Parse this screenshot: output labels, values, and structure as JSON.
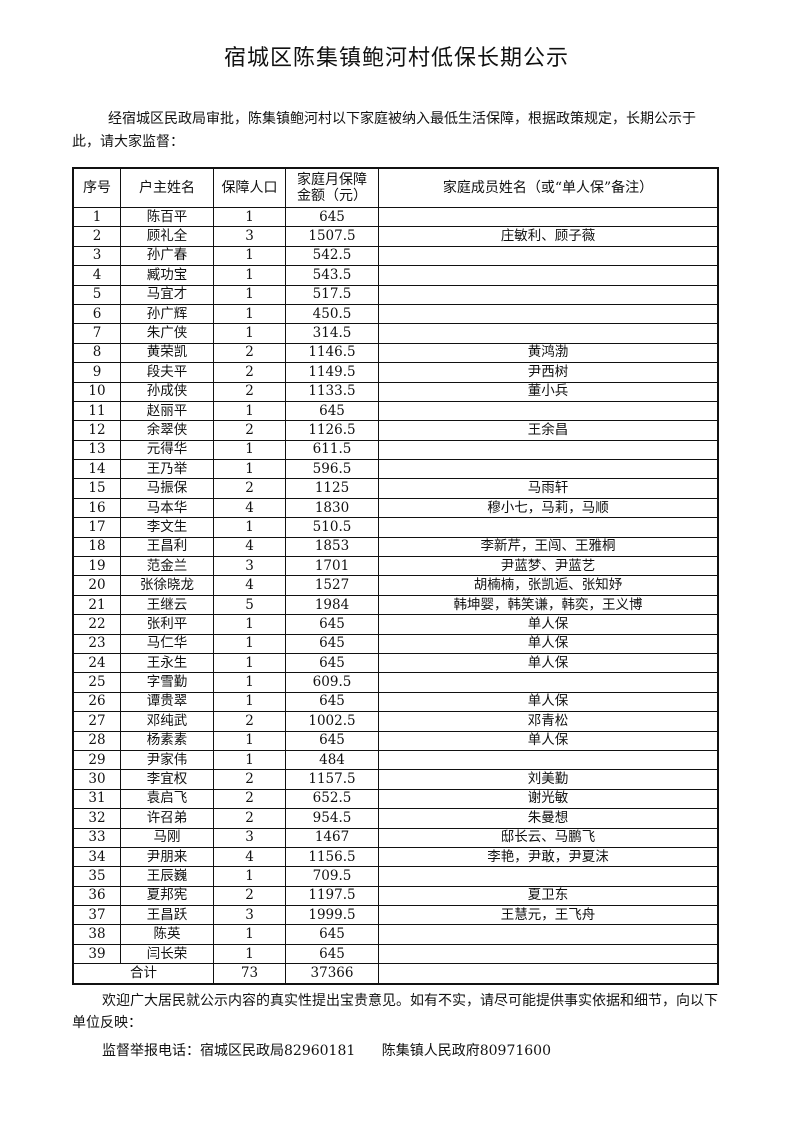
{
  "title": "宿城区陈集镇鲍河村低保长期公示",
  "intro": "经宿城区民政局审批，陈集镇鲍河村以下家庭被纳入最低生活保障，根据政策规定，长期公示于此，请大家监督：",
  "table": {
    "headers": [
      "序号",
      "户主姓名",
      "保障人口",
      "家庭月保障金额（元）",
      "家庭成员姓名（或“单人保”备注）"
    ],
    "rows": [
      [
        "1",
        "陈百平",
        "1",
        "645",
        ""
      ],
      [
        "2",
        "顾礼全",
        "3",
        "1507.5",
        "庄敏利、顾子薇"
      ],
      [
        "3",
        "孙广春",
        "1",
        "542.5",
        ""
      ],
      [
        "4",
        "臧功宝",
        "1",
        "543.5",
        ""
      ],
      [
        "5",
        "马宜才",
        "1",
        "517.5",
        ""
      ],
      [
        "6",
        "孙广辉",
        "1",
        "450.5",
        ""
      ],
      [
        "7",
        "朱广侠",
        "1",
        "314.5",
        ""
      ],
      [
        "8",
        "黄荣凯",
        "2",
        "1146.5",
        "黄鸿渤"
      ],
      [
        "9",
        "段夫平",
        "2",
        "1149.5",
        "尹西树"
      ],
      [
        "10",
        "孙成侠",
        "2",
        "1133.5",
        "董小兵"
      ],
      [
        "11",
        "赵丽平",
        "1",
        "645",
        ""
      ],
      [
        "12",
        "余翠侠",
        "2",
        "1126.5",
        "王余昌"
      ],
      [
        "13",
        "元得华",
        "1",
        "611.5",
        ""
      ],
      [
        "14",
        "王乃举",
        "1",
        "596.5",
        ""
      ],
      [
        "15",
        "马振保",
        "2",
        "1125",
        "马雨轩"
      ],
      [
        "16",
        "马本华",
        "4",
        "1830",
        "穆小七，马莉，马顺"
      ],
      [
        "17",
        "李文生",
        "1",
        "510.5",
        ""
      ],
      [
        "18",
        "王昌利",
        "4",
        "1853",
        "李新芹，王闯、王雅桐"
      ],
      [
        "19",
        "范金兰",
        "3",
        "1701",
        "尹蓝梦、尹蓝艺"
      ],
      [
        "20",
        "张徐晓龙",
        "4",
        "1527",
        "胡楠楠，张凯逅、张知妤"
      ],
      [
        "21",
        "王继云",
        "5",
        "1984",
        "韩坤婴，韩笑谦，韩奕，王义博"
      ],
      [
        "22",
        "张利平",
        "1",
        "645",
        "单人保"
      ],
      [
        "23",
        "马仁华",
        "1",
        "645",
        "单人保"
      ],
      [
        "24",
        "王永生",
        "1",
        "645",
        "单人保"
      ],
      [
        "25",
        "字雪勤",
        "1",
        "609.5",
        ""
      ],
      [
        "26",
        "谭贵翠",
        "1",
        "645",
        "单人保"
      ],
      [
        "27",
        "邓纯武",
        "2",
        "1002.5",
        "邓青松"
      ],
      [
        "28",
        "杨素素",
        "1",
        "645",
        "单人保"
      ],
      [
        "29",
        "尹家伟",
        "1",
        "484",
        ""
      ],
      [
        "30",
        "李宜权",
        "2",
        "1157.5",
        "刘美勤"
      ],
      [
        "31",
        "袁启飞",
        "2",
        "652.5",
        "谢光敏"
      ],
      [
        "32",
        "许召弟",
        "2",
        "954.5",
        "朱曼想"
      ],
      [
        "33",
        "马刚",
        "3",
        "1467",
        "邸长云、马鹏飞"
      ],
      [
        "34",
        "尹朋来",
        "4",
        "1156.5",
        "李艳，尹敢，尹夏沫"
      ],
      [
        "35",
        "王辰巍",
        "1",
        "709.5",
        ""
      ],
      [
        "36",
        "夏邦宪",
        "2",
        "1197.5",
        "夏卫东"
      ],
      [
        "37",
        "王昌跃",
        "3",
        "1999.5",
        "王慧元，王飞舟"
      ],
      [
        "38",
        "陈英",
        "1",
        "645",
        ""
      ],
      [
        "39",
        "闫长荣",
        "1",
        "645",
        ""
      ]
    ],
    "total": {
      "label": "合计",
      "population": "73",
      "amount": "37366"
    }
  },
  "footer": "欢迎广大居民就公示内容的真实性提出宝贵意见。如有不实，请尽可能提供事实依据和细节，向以下单位反映：",
  "contact": {
    "label": "监督举报电话：宿城区民政局82960181",
    "town": "陈集镇人民政府80971600"
  }
}
